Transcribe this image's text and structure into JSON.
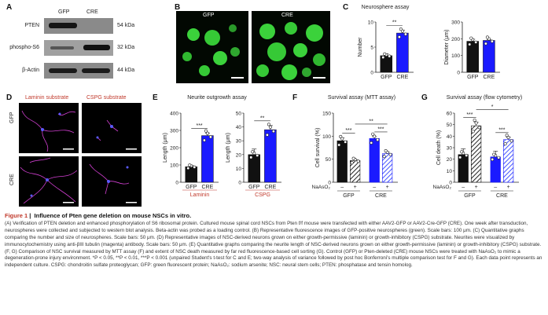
{
  "panel_letters": {
    "a": "A",
    "b": "B",
    "c": "C",
    "d": "D",
    "e": "E",
    "f": "F",
    "g": "G"
  },
  "colors": {
    "gfp": "#111111",
    "cre": "#1a1aff",
    "nahash": "#4455ff",
    "laminin": "#c0392b",
    "cspg": "#c0392b"
  },
  "panelA": {
    "columns": [
      "GFP",
      "CRE"
    ],
    "rows": [
      {
        "label": "PTEN",
        "kda": "54 kDa"
      },
      {
        "label": "phospho-S6",
        "kda": "32 kDa"
      },
      {
        "label": "β-Actin",
        "kda": "44 kDa"
      }
    ]
  },
  "panelB": {
    "labels": [
      "GFP",
      "CRE"
    ]
  },
  "panelD": {
    "col_labels": [
      "Laminin substrate",
      "CSPG substrate"
    ],
    "row_labels": [
      "GFP",
      "CRE"
    ]
  },
  "chart_data": [
    {
      "id": "C1",
      "type": "bar",
      "title": "Neurosphere assay",
      "ylabel": "Number",
      "categories": [
        "GFP",
        "CRE"
      ],
      "values": [
        3.3,
        7.8
      ],
      "errors": [
        0.4,
        0.6
      ],
      "ylim": [
        0,
        10
      ],
      "yticks": [
        0,
        5,
        10
      ],
      "sig": "**"
    },
    {
      "id": "C2",
      "type": "bar",
      "title": "",
      "ylabel": "Diameter (μm)",
      "categories": [
        "GFP",
        "CRE"
      ],
      "values": [
        185,
        190
      ],
      "errors": [
        12,
        5
      ],
      "ylim": [
        0,
        300
      ],
      "yticks": [
        0,
        100,
        200,
        300
      ],
      "sig": ""
    },
    {
      "id": "E1",
      "type": "bar",
      "title": "Neurite outgrowth assay",
      "ylabel": "Length (μm)",
      "categories": [
        "GFP",
        "CRE"
      ],
      "values": [
        90,
        270
      ],
      "errors": [
        8,
        15
      ],
      "ylim": [
        0,
        400
      ],
      "yticks": [
        0,
        100,
        200,
        300,
        400
      ],
      "sig": "***",
      "group_label": "Laminin"
    },
    {
      "id": "E2",
      "type": "bar",
      "title": "",
      "ylabel": "Length (μm)",
      "categories": [
        "GFP",
        "CRE"
      ],
      "values": [
        20,
        38
      ],
      "errors": [
        4,
        3
      ],
      "ylim": [
        0,
        50
      ],
      "yticks": [
        0,
        10,
        20,
        30,
        40,
        50
      ],
      "sig": "**",
      "group_label": "CSPG"
    },
    {
      "id": "F",
      "type": "bar",
      "title": "Survival assay (MTT assay)",
      "ylabel": "Cell survival (%)",
      "groups": [
        "GFP",
        "CRE"
      ],
      "treatment_label": "NaAsO",
      "treatment_levels": [
        "–",
        "+"
      ],
      "values": [
        [
          90,
          47
        ],
        [
          95,
          62
        ]
      ],
      "errors": [
        [
          6,
          2
        ],
        [
          4,
          3
        ]
      ],
      "ylim": [
        0,
        150
      ],
      "yticks": [
        0,
        50,
        100,
        150
      ],
      "sigs": [
        "***",
        "***",
        "**"
      ]
    },
    {
      "id": "G",
      "type": "bar",
      "title": "Survival assay (flow cytometry)",
      "ylabel": "Cell death (%)",
      "groups": [
        "GFP",
        "CRE"
      ],
      "treatment_label": "NaAsO",
      "treatment_levels": [
        "–",
        "+"
      ],
      "values": [
        [
          24,
          49
        ],
        [
          22,
          37
        ]
      ],
      "errors": [
        [
          5,
          3
        ],
        [
          5,
          2
        ]
      ],
      "ylim": [
        0,
        60
      ],
      "yticks": [
        0,
        10,
        20,
        30,
        40,
        50,
        60
      ],
      "sigs": [
        "***",
        "***",
        "*"
      ]
    }
  ],
  "caption": {
    "fig": "Figure 1",
    "title": "Influence of Pten gene deletion on mouse NSCs in vitro.",
    "body": "(A) Verification of PTEN deletion and enhanced phosphorylation of S6 ribosomal protein. Cultured mouse spinal cord NSCs from Pten f/f mouse were transfected with either AAV2-GFP or AAV2-Cre-GFP (CRE). One week after transduction, neurospheres were collected and subjected to western blot analysis. Beta-actin was probed as a loading control. (B) Representative fluorescence images of GFP-positive neurospheres (green). Scale bars: 100 μm. (C) Quantitative graphs comparing the number and size of neurospheres. Scale bars: 50 μm. (D) Representative images of NSC-derived neurons grown on either growth-permissive (laminin) or growth-inhibitory (CSPG) substrate. Neurites were visualized by immunocytochemistry using anti-βIII tubulin (magenta) antibody. Scale bars: 50 μm. (E) Quantitative graphs comparing the neurite length of NSC-derived neurons grown on either growth-permissive (laminin) or growth-inhibitory (CSPG) substrate. (F, G) Comparison of NSC survival measured by MTT assay (F) and extent of NSC death measured by far red fluorescence-based cell sorting (G). Control (GFP) or Pten-deleted (CRE) mouse NSCs were treated with NaAsO₂ to mimic a degeneration-prone injury environment. *P < 0.05, **P < 0.01, ***P < 0.001 (unpaired Student's t-test for C and E; two-way analysis of variance followed by post hoc Bonferroni's multiple comparison test for F and G). Each data point represents an independent culture. CSPG: chondroitin sulfate proteoglycan; GFP: green fluorescent protein; NaAsO₂: sodium arsenite; NSC: neural stem cells; PTEN: phosphatase and tensin homolog."
  }
}
